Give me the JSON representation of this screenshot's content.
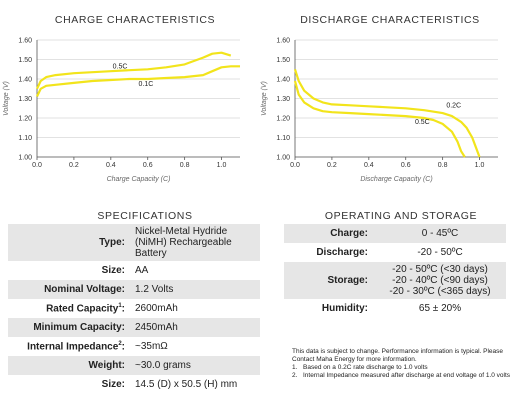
{
  "chart_data": [
    {
      "type": "line",
      "title": "CHARGE CHARACTERISTICS",
      "xlabel": "Charge Capacity (C)",
      "ylabel": "Voltage (V)",
      "xlim": [
        0.0,
        1.1
      ],
      "ylim": [
        1.0,
        1.6
      ],
      "xticks": [
        "0.0",
        "0.2",
        "0.4",
        "0.6",
        "0.8",
        "1.0"
      ],
      "yticks": [
        "1.00",
        "1.10",
        "1.20",
        "1.30",
        "1.40",
        "1.50",
        "1.60"
      ],
      "grid": "horizontal",
      "color": "#f2e41b",
      "series": [
        {
          "name": "0.5C",
          "x": [
            0.0,
            0.02,
            0.05,
            0.1,
            0.2,
            0.3,
            0.4,
            0.5,
            0.6,
            0.7,
            0.8,
            0.9,
            0.95,
            1.0,
            1.05
          ],
          "y": [
            1.35,
            1.39,
            1.41,
            1.42,
            1.43,
            1.435,
            1.44,
            1.445,
            1.45,
            1.46,
            1.475,
            1.51,
            1.53,
            1.535,
            1.52
          ]
        },
        {
          "name": "0.1C",
          "x": [
            0.0,
            0.02,
            0.05,
            0.1,
            0.2,
            0.3,
            0.4,
            0.5,
            0.6,
            0.7,
            0.8,
            0.9,
            0.95,
            1.0,
            1.05,
            1.1
          ],
          "y": [
            1.31,
            1.35,
            1.365,
            1.37,
            1.38,
            1.39,
            1.395,
            1.4,
            1.4,
            1.405,
            1.41,
            1.42,
            1.44,
            1.46,
            1.465,
            1.465
          ]
        }
      ]
    },
    {
      "type": "line",
      "title": "DISCHARGE CHARACTERISTICS",
      "xlabel": "Discharge Capacity (C)",
      "ylabel": "Voltage (V)",
      "xlim": [
        0.0,
        1.1
      ],
      "ylim": [
        1.0,
        1.6
      ],
      "xticks": [
        "0.0",
        "0.2",
        "0.4",
        "0.6",
        "0.8",
        "1.0"
      ],
      "yticks": [
        "1.00",
        "1.10",
        "1.20",
        "1.30",
        "1.40",
        "1.50",
        "1.60"
      ],
      "grid": "horizontal",
      "color": "#f2e41b",
      "series": [
        {
          "name": "0.2C",
          "x": [
            0.0,
            0.02,
            0.05,
            0.1,
            0.15,
            0.2,
            0.3,
            0.4,
            0.5,
            0.6,
            0.7,
            0.8,
            0.85,
            0.9,
            0.93,
            0.96,
            0.98,
            1.0
          ],
          "y": [
            1.45,
            1.39,
            1.34,
            1.3,
            1.28,
            1.27,
            1.265,
            1.26,
            1.255,
            1.25,
            1.24,
            1.225,
            1.21,
            1.18,
            1.15,
            1.1,
            1.05,
            1.0
          ]
        },
        {
          "name": "0.5C",
          "x": [
            0.0,
            0.02,
            0.05,
            0.1,
            0.15,
            0.2,
            0.3,
            0.4,
            0.5,
            0.6,
            0.7,
            0.75,
            0.8,
            0.85,
            0.88,
            0.9,
            0.92
          ],
          "y": [
            1.39,
            1.32,
            1.28,
            1.25,
            1.235,
            1.23,
            1.225,
            1.22,
            1.215,
            1.21,
            1.2,
            1.19,
            1.17,
            1.13,
            1.08,
            1.03,
            1.0
          ]
        }
      ]
    }
  ],
  "specifications": {
    "title": "SPECIFICATIONS",
    "rows": [
      {
        "label": "Type:",
        "sup": "",
        "value_lines": [
          "Nickel-Metal Hydride",
          "(NiMH) Rechargeable",
          "Battery"
        ]
      },
      {
        "label": "Size:",
        "sup": "",
        "value_lines": [
          "AA"
        ]
      },
      {
        "label": "Nominal Voltage:",
        "sup": "",
        "value_lines": [
          "1.2 Volts"
        ]
      },
      {
        "label": "Rated Capacity",
        "sup": "1",
        "value_lines": [
          "2600mAh"
        ]
      },
      {
        "label": "Minimum Capacity:",
        "sup": "",
        "value_lines": [
          "2450mAh"
        ]
      },
      {
        "label": "Internal Impedance",
        "sup": "2",
        "value_lines": [
          "~35mΩ"
        ]
      },
      {
        "label": "Weight:",
        "sup": "",
        "value_lines": [
          "~30.0 grams"
        ]
      },
      {
        "label": "Size:",
        "sup": "",
        "value_lines": [
          "14.5 (D) x 50.5 (H) mm"
        ]
      }
    ]
  },
  "temperatures": {
    "title": "OPERATING AND STORAGE TEMPERATURES",
    "rows": [
      {
        "label": "Charge:",
        "value_lines": [
          "0 - 45ºC"
        ]
      },
      {
        "label": "Discharge:",
        "value_lines": [
          "-20 - 50ºC"
        ]
      },
      {
        "label": "Storage:",
        "value_lines": [
          "-20 - 50ºC (<30 days)",
          "-20 - 40ºC (<90 days)",
          "-20 - 30ºC (<365 days)"
        ]
      },
      {
        "label": "Humidity:",
        "value_lines": [
          "65 ± 20%"
        ]
      }
    ]
  },
  "notes": {
    "intro": "This data is subject to change.  Performance information is typical. Please Contact Maha Energy for more information.",
    "items": [
      {
        "num": "1.",
        "text": "Based on a 0.2C rate discharge to 1.0 volts"
      },
      {
        "num": "2.",
        "text": "Internal Impedance measured after discharge at end voltage of 1.0 volts"
      }
    ]
  }
}
